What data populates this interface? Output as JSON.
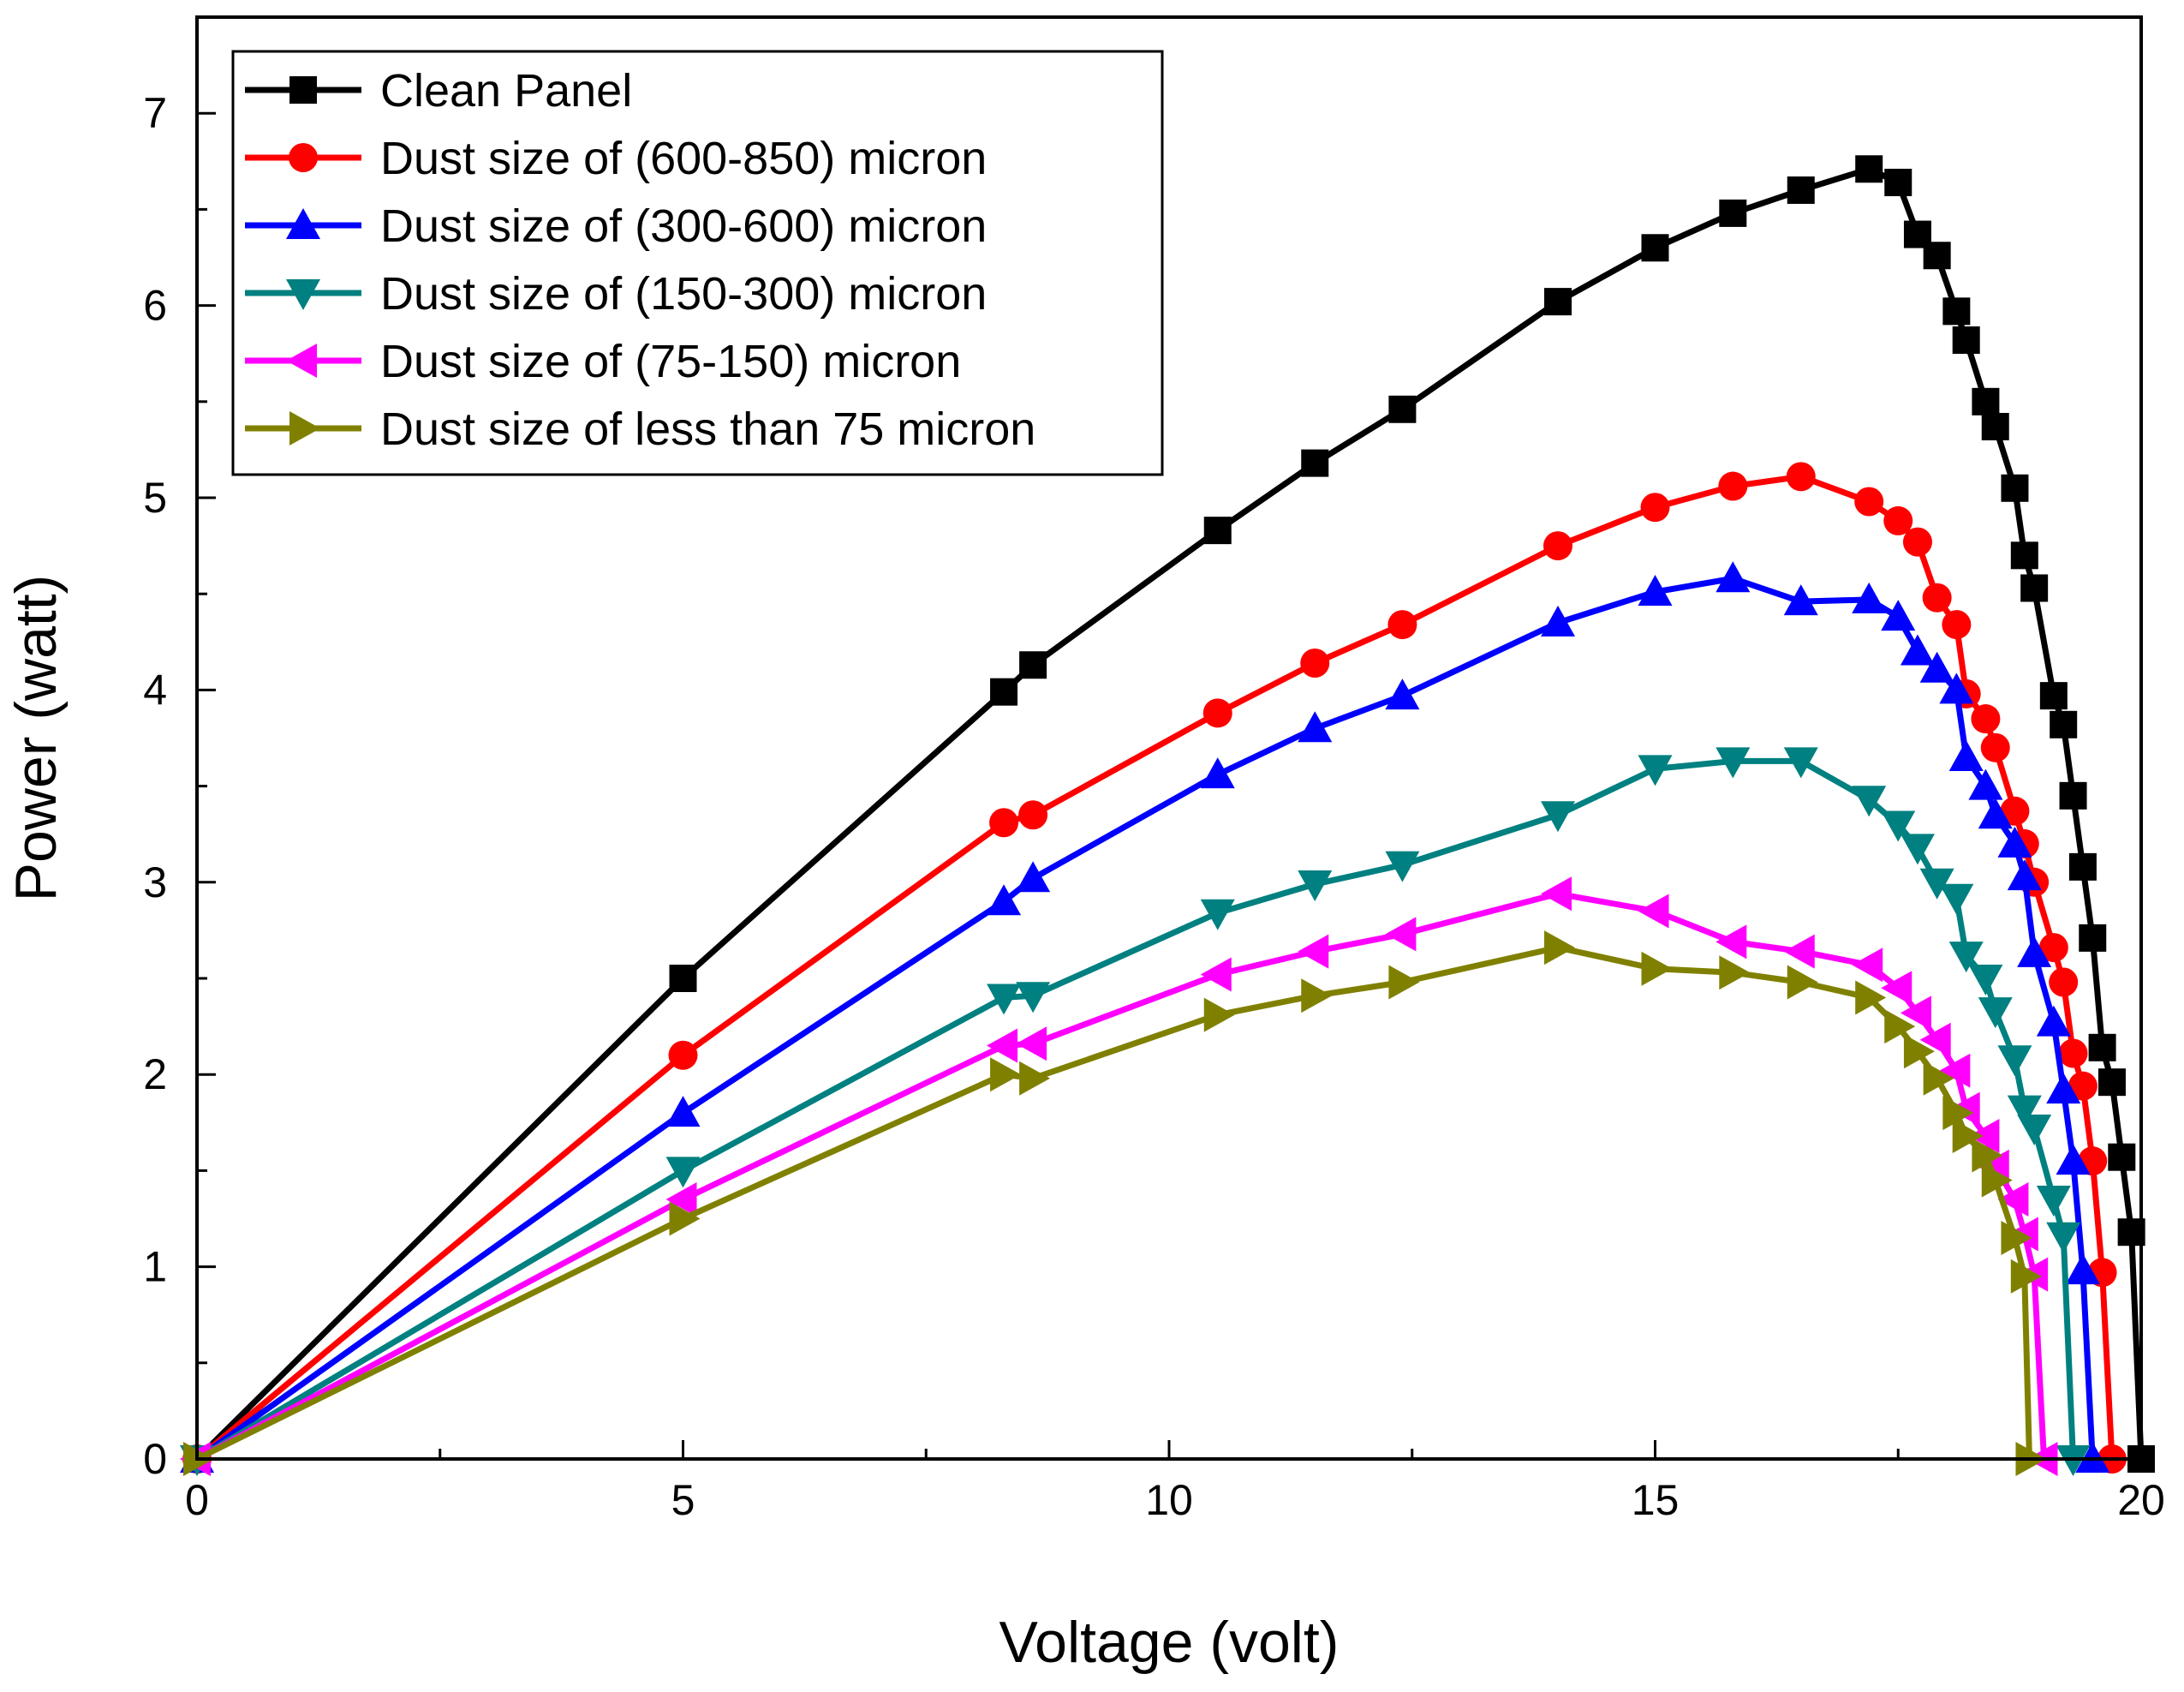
{
  "chart_data": {
    "type": "line",
    "title": "",
    "xlabel": "Voltage (volt)",
    "ylabel": "Power (watt)",
    "xlim": [
      0,
      20
    ],
    "ylim": [
      0,
      7.5
    ],
    "xticks": [
      0,
      5,
      10,
      15,
      20
    ],
    "yticks": [
      0,
      1,
      2,
      3,
      4,
      5,
      6,
      7
    ],
    "grid": false,
    "legend_position": "top-left",
    "series": [
      {
        "name": "Clean Panel",
        "color": "#000000",
        "marker": "square",
        "x": [
          0,
          5,
          8.3,
          8.6,
          10.5,
          11.5,
          12.4,
          14,
          15,
          15.8,
          16.5,
          17.2,
          17.5,
          17.7,
          17.9,
          18.1,
          18.2,
          18.4,
          18.5,
          18.7,
          18.8,
          18.9,
          19.1,
          19.2,
          19.3,
          19.4,
          19.5,
          19.6,
          19.7,
          19.8,
          19.9,
          20
        ],
        "y": [
          0,
          2.5,
          3.99,
          4.13,
          4.83,
          5.18,
          5.46,
          6.02,
          6.3,
          6.48,
          6.6,
          6.71,
          6.64,
          6.37,
          6.26,
          5.97,
          5.82,
          5.5,
          5.37,
          5.05,
          4.7,
          4.53,
          3.97,
          3.82,
          3.45,
          3.08,
          2.71,
          2.14,
          1.96,
          1.57,
          1.18,
          0
        ]
      },
      {
        "name": "Dust size of (600-850) micron",
        "color": "#ff0000",
        "marker": "circle",
        "x": [
          0,
          5,
          8.3,
          8.6,
          10.5,
          11.5,
          12.4,
          14,
          15,
          15.8,
          16.5,
          17.2,
          17.5,
          17.7,
          17.9,
          18.1,
          18.2,
          18.4,
          18.5,
          18.7,
          18.8,
          18.9,
          19.1,
          19.2,
          19.3,
          19.4,
          19.5,
          19.6,
          19.7
        ],
        "y": [
          0,
          2.1,
          3.31,
          3.35,
          3.88,
          4.14,
          4.34,
          4.75,
          4.95,
          5.06,
          5.11,
          4.98,
          4.88,
          4.77,
          4.48,
          4.34,
          3.98,
          3.85,
          3.7,
          3.37,
          3.2,
          3.0,
          2.66,
          2.48,
          2.11,
          1.94,
          1.55,
          0.97,
          0
        ]
      },
      {
        "name": "Dust size of (300-600) micron",
        "color": "#0000ff",
        "marker": "triangle-up",
        "x": [
          0,
          5,
          8.3,
          8.6,
          10.5,
          11.5,
          12.4,
          14,
          15,
          15.8,
          16.5,
          17.2,
          17.5,
          17.7,
          17.9,
          18.1,
          18.2,
          18.4,
          18.5,
          18.7,
          18.8,
          18.9,
          19.1,
          19.2,
          19.3,
          19.4,
          19.5
        ],
        "y": [
          0,
          1.8,
          2.9,
          3.02,
          3.56,
          3.8,
          3.97,
          4.35,
          4.51,
          4.58,
          4.46,
          4.47,
          4.38,
          4.2,
          4.11,
          4.0,
          3.65,
          3.5,
          3.35,
          3.2,
          3.03,
          2.63,
          2.27,
          1.92,
          1.55,
          0.98,
          0
        ]
      },
      {
        "name": "Dust size of (150-300) micron",
        "color": "#008080",
        "marker": "triangle-down",
        "x": [
          0,
          5,
          8.3,
          8.6,
          10.5,
          11.5,
          12.4,
          14,
          15,
          15.8,
          16.5,
          17.2,
          17.5,
          17.7,
          17.9,
          18.1,
          18.2,
          18.4,
          18.5,
          18.7,
          18.8,
          18.9,
          19.1,
          19.2,
          19.3
        ],
        "y": [
          0,
          1.5,
          2.4,
          2.41,
          2.84,
          2.99,
          3.09,
          3.35,
          3.59,
          3.63,
          3.63,
          3.43,
          3.3,
          3.18,
          3.0,
          2.92,
          2.62,
          2.5,
          2.33,
          2.08,
          1.82,
          1.72,
          1.35,
          1.16,
          0
        ]
      },
      {
        "name": "Dust size of (75-150) micron",
        "color": "#ff00ff",
        "marker": "triangle-left",
        "x": [
          0,
          5,
          8.3,
          8.6,
          10.5,
          11.5,
          12.4,
          14,
          15,
          15.8,
          16.5,
          17.2,
          17.5,
          17.7,
          17.9,
          18.1,
          18.2,
          18.4,
          18.5,
          18.7,
          18.8,
          18.9,
          19.0
        ],
        "y": [
          0,
          1.35,
          2.15,
          2.16,
          2.52,
          2.64,
          2.73,
          2.94,
          2.85,
          2.69,
          2.64,
          2.57,
          2.45,
          2.32,
          2.18,
          2.02,
          1.82,
          1.68,
          1.52,
          1.35,
          1.17,
          0.96,
          0
        ]
      },
      {
        "name": "Dust size of less than 75 micron",
        "color": "#808000",
        "marker": "triangle-right",
        "x": [
          0,
          5,
          8.3,
          8.6,
          10.5,
          11.5,
          12.4,
          14,
          15,
          15.8,
          16.5,
          17.2,
          17.5,
          17.7,
          17.9,
          18.1,
          18.2,
          18.4,
          18.5,
          18.7,
          18.8,
          18.85
        ],
        "y": [
          0,
          1.25,
          2.0,
          1.98,
          2.31,
          2.41,
          2.48,
          2.66,
          2.55,
          2.53,
          2.48,
          2.4,
          2.25,
          2.12,
          1.98,
          1.8,
          1.68,
          1.58,
          1.45,
          1.15,
          0.95,
          0
        ]
      }
    ]
  }
}
